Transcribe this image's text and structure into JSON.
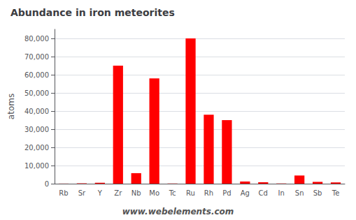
{
  "chart_data": {
    "type": "bar",
    "title": "Abundance in iron meteorites",
    "y_label": "atoms",
    "annotations": [
      "www.webelements.com"
    ],
    "categories": [
      "Rb",
      "Sr",
      "Y",
      "Zr",
      "Nb",
      "Mo",
      "Tc",
      "Ru",
      "Rh",
      "Pd",
      "Ag",
      "Cd",
      "In",
      "Sn",
      "Sb",
      "Te"
    ],
    "values": [
      50,
      200,
      500,
      65000,
      5800,
      58000,
      100,
      80000,
      38000,
      35000,
      1200,
      800,
      120,
      4500,
      1000,
      700
    ],
    "color": "#ff0000",
    "ylim": [
      0,
      85000
    ],
    "yticks": [
      0,
      {
        "value": 10000,
        "label": "10,000"
      },
      {
        "value": 20000,
        "label": "20,000"
      },
      {
        "value": 30000,
        "label": "30,000"
      },
      {
        "value": 40000,
        "label": "40,000"
      },
      {
        "value": 50000,
        "label": "50,000"
      },
      {
        "value": 60000,
        "label": "60,000"
      },
      {
        "value": 70000,
        "label": "70,000"
      },
      {
        "value": 80000,
        "label": "80,000"
      }
    ],
    "grid": true
  }
}
